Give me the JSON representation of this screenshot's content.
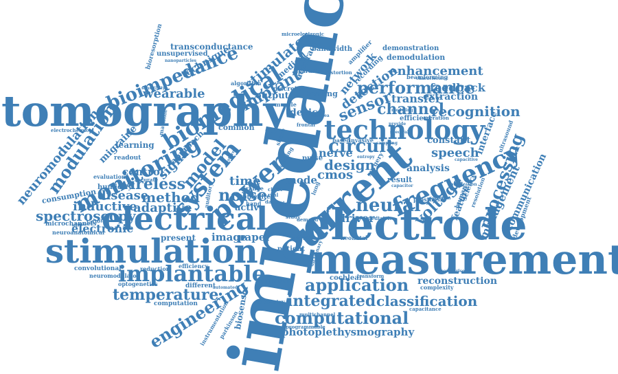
{
  "colors": {
    "word": "#3f7fb6",
    "background": "#ffffff"
  },
  "words": [
    {
      "text": "impedance"
    },
    {
      "text": "measurement"
    },
    {
      "text": "tomography"
    },
    {
      "text": "electrode"
    },
    {
      "text": "stimulation"
    },
    {
      "text": "electrical"
    },
    {
      "text": "current"
    },
    {
      "text": "technology"
    },
    {
      "text": "implantable"
    },
    {
      "text": "power"
    },
    {
      "text": "frequency"
    },
    {
      "text": "biomedical"
    },
    {
      "text": "monitoring"
    },
    {
      "text": "system"
    },
    {
      "text": "bioimpedance"
    },
    {
      "text": "performance"
    },
    {
      "text": "computational"
    },
    {
      "text": "application"
    },
    {
      "text": "engineering"
    },
    {
      "text": "integrated"
    },
    {
      "text": "temperature"
    },
    {
      "text": "circuit"
    },
    {
      "text": "neural"
    },
    {
      "text": "wireless"
    },
    {
      "text": "spectroscopy"
    },
    {
      "text": "classification"
    },
    {
      "text": "processing"
    },
    {
      "text": "recognition"
    },
    {
      "text": "enhancement"
    },
    {
      "text": "photoplethysmography"
    },
    {
      "text": "channel"
    },
    {
      "text": "modulation"
    },
    {
      "text": "neuromodulation"
    },
    {
      "text": "implant"
    },
    {
      "text": "stimulator"
    },
    {
      "text": "model"
    },
    {
      "text": "noise"
    },
    {
      "text": "sensor"
    },
    {
      "text": "design"
    },
    {
      "text": "voltage"
    },
    {
      "text": "method"
    },
    {
      "text": "reconstruction"
    },
    {
      "text": "management"
    },
    {
      "text": "communication"
    },
    {
      "text": "adaptive"
    },
    {
      "text": "inductive"
    },
    {
      "text": "wearable"
    },
    {
      "text": "disease"
    },
    {
      "text": "signal"
    },
    {
      "text": "transconductance"
    },
    {
      "text": "speech"
    },
    {
      "text": "feedback"
    },
    {
      "text": "transfer"
    },
    {
      "text": "extraction"
    },
    {
      "text": "detection"
    },
    {
      "text": "network"
    },
    {
      "text": "electronic"
    },
    {
      "text": "control"
    },
    {
      "text": "image"
    },
    {
      "text": "paper"
    },
    {
      "text": "time"
    },
    {
      "text": "present"
    },
    {
      "text": "active"
    },
    {
      "text": "driver"
    },
    {
      "text": "cmos"
    },
    {
      "text": "nerve"
    },
    {
      "text": "analysis"
    },
    {
      "text": "feature"
    },
    {
      "text": "constant"
    },
    {
      "text": "interface"
    },
    {
      "text": "migraine"
    },
    {
      "text": "output"
    },
    {
      "text": "mode"
    },
    {
      "text": "device"
    },
    {
      "text": "variation"
    },
    {
      "text": "cochlear"
    },
    {
      "text": "consumption"
    },
    {
      "text": "technique"
    },
    {
      "text": "approach"
    },
    {
      "text": "learning"
    },
    {
      "text": "humidity"
    },
    {
      "text": "accuracy"
    },
    {
      "text": "unsupervised"
    },
    {
      "text": "bandwidth"
    },
    {
      "text": "demodulation"
    },
    {
      "text": "demonstration"
    },
    {
      "text": "medical"
    },
    {
      "text": "hearing"
    },
    {
      "text": "microchannels"
    },
    {
      "text": "neuroanatomical"
    },
    {
      "text": "convolutional"
    },
    {
      "text": "neuromodulator"
    },
    {
      "text": "optogenetics"
    },
    {
      "text": "computation"
    },
    {
      "text": "reduction"
    },
    {
      "text": "efficiency"
    },
    {
      "text": "different"
    },
    {
      "text": "instrumentation"
    },
    {
      "text": "biosensor"
    },
    {
      "text": "parkinson"
    },
    {
      "text": "telemetry"
    },
    {
      "text": "multichannel"
    },
    {
      "text": "programmable"
    },
    {
      "text": "capacitance"
    },
    {
      "text": "complexity"
    },
    {
      "text": "prosthesis"
    },
    {
      "text": "result"
    },
    {
      "text": "efficient"
    },
    {
      "text": "common"
    },
    {
      "text": "evaluation"
    },
    {
      "text": "readout"
    },
    {
      "text": "electrochemical"
    },
    {
      "text": "bioresorption"
    },
    {
      "text": "simulation"
    },
    {
      "text": "ultrasound"
    },
    {
      "text": "development"
    },
    {
      "text": "beamforming"
    },
    {
      "text": "science"
    },
    {
      "text": "human"
    },
    {
      "text": "resolution"
    },
    {
      "text": "dictionary"
    },
    {
      "text": "patient"
    },
    {
      "text": "neonatal"
    },
    {
      "text": "transform"
    },
    {
      "text": "lateral"
    },
    {
      "text": "surgery"
    },
    {
      "text": "pediatric"
    },
    {
      "text": "heart"
    },
    {
      "text": "demand"
    },
    {
      "text": "spike"
    },
    {
      "text": "filter"
    },
    {
      "text": "range"
    },
    {
      "text": "hand"
    },
    {
      "text": "asic"
    },
    {
      "text": "data"
    },
    {
      "text": "pulse"
    },
    {
      "text": "sensing"
    },
    {
      "text": "algorithm"
    },
    {
      "text": "discrete"
    },
    {
      "text": "muscle"
    },
    {
      "text": "parameter"
    },
    {
      "text": "distortion"
    },
    {
      "text": "amplifier"
    },
    {
      "text": "recording"
    },
    {
      "text": "based"
    },
    {
      "text": "invasive"
    },
    {
      "text": "microelectronic"
    },
    {
      "text": "nanoparticles"
    },
    {
      "text": "sensitivity"
    },
    {
      "text": "machine"
    },
    {
      "text": "auditory"
    },
    {
      "text": "frontal"
    },
    {
      "text": "cochlea"
    },
    {
      "text": "real"
    },
    {
      "text": "chest"
    },
    {
      "text": "lung"
    },
    {
      "text": "entropy"
    },
    {
      "text": "operation"
    },
    {
      "text": "provide"
    },
    {
      "text": "modeling"
    },
    {
      "text": "optimization"
    },
    {
      "text": "capacitive"
    },
    {
      "text": "selection"
    },
    {
      "text": "comparison"
    },
    {
      "text": "capacitor"
    },
    {
      "text": "spectral"
    },
    {
      "text": "characteristic"
    },
    {
      "text": "study"
    },
    {
      "text": "insertion"
    },
    {
      "text": "accurate"
    },
    {
      "text": "automated"
    },
    {
      "text": "gesture"
    },
    {
      "text": "sampling"
    },
    {
      "text": "tissue"
    },
    {
      "text": "shape"
    }
  ]
}
